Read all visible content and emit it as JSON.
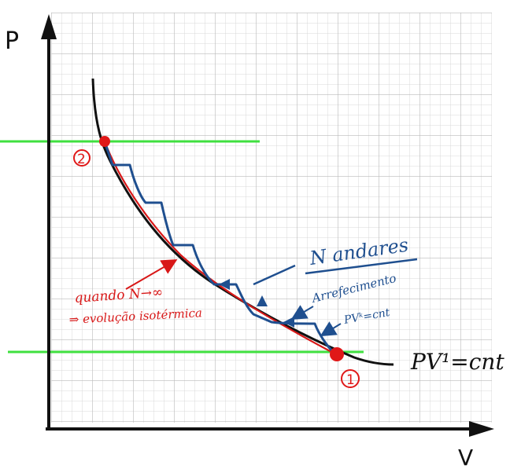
{
  "axes": {
    "y_label": "P",
    "x_label": "V"
  },
  "points": [
    {
      "id": "1",
      "label": "1"
    },
    {
      "id": "2",
      "label": "2"
    }
  ],
  "annotations": {
    "isotherm_eq": "PV¹=cnt",
    "n_steps": "N andares",
    "cooling": "Arrefecimento",
    "adiabatic_eq": "PVᵏ=cnt",
    "limit_line1": "quando N→∞",
    "limit_line2": "⇒ evolução isotérmica"
  },
  "colors": {
    "grid": "#cfcfcf",
    "axis": "#111111",
    "isotherm_curve": "#111111",
    "limit_curve": "#d81818",
    "steps": "#1f4f8f",
    "horizontal_lines": "#3fe03f",
    "points": "#e01818",
    "annotation_red": "#d81818",
    "annotation_blue": "#1f4f8f"
  }
}
